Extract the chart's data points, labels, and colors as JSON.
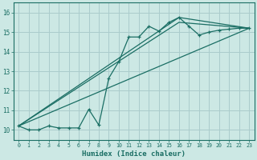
{
  "xlabel": "Humidex (Indice chaleur)",
  "ylabel": "",
  "background_color": "#cce8e4",
  "grid_color": "#aacccc",
  "line_color": "#1a6e64",
  "xlim": [
    -0.5,
    23.5
  ],
  "ylim": [
    9.5,
    16.5
  ],
  "xticks": [
    0,
    1,
    2,
    3,
    4,
    5,
    6,
    7,
    8,
    9,
    10,
    11,
    12,
    13,
    14,
    15,
    16,
    17,
    18,
    19,
    20,
    21,
    22,
    23
  ],
  "yticks": [
    10,
    11,
    12,
    13,
    14,
    15,
    16
  ],
  "curve1_x": [
    0,
    1,
    2,
    3,
    4,
    5,
    6,
    7,
    8,
    9,
    10,
    11,
    12,
    13,
    14,
    15,
    16,
    17,
    18,
    19,
    20,
    21,
    22,
    23
  ],
  "curve1_y": [
    10.2,
    10.0,
    10.0,
    10.2,
    10.1,
    10.1,
    10.1,
    11.05,
    10.25,
    12.65,
    13.5,
    14.75,
    14.75,
    15.3,
    15.05,
    15.5,
    15.75,
    15.3,
    14.85,
    15.0,
    15.1,
    15.15,
    15.2,
    15.2
  ],
  "line1_x": [
    0,
    23
  ],
  "line1_y": [
    10.2,
    15.2
  ],
  "line2_x": [
    0,
    16,
    23
  ],
  "line2_y": [
    10.2,
    15.75,
    15.2
  ],
  "line3_x": [
    0,
    16,
    23
  ],
  "line3_y": [
    10.2,
    15.5,
    15.2
  ]
}
